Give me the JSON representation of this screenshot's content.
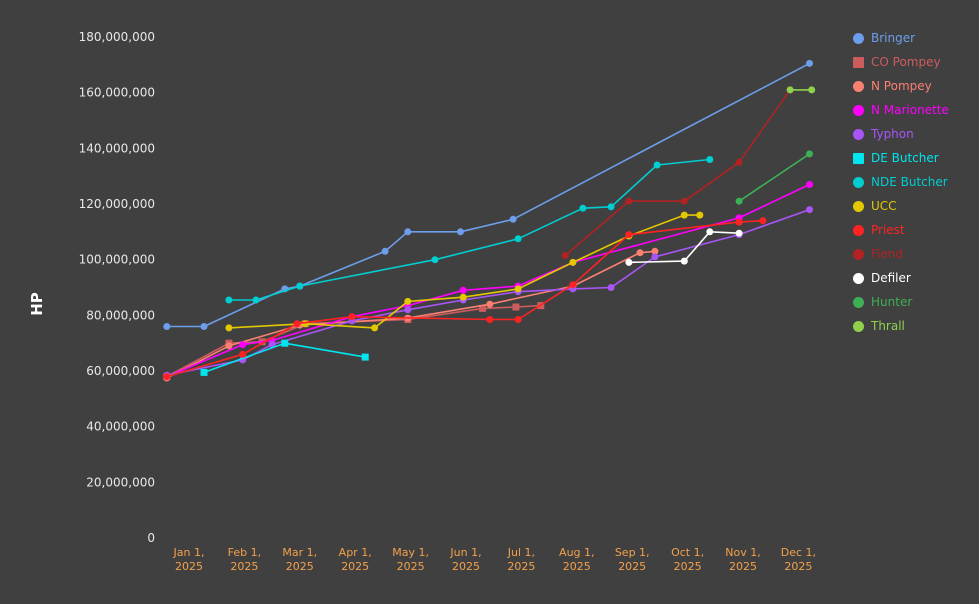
{
  "app": {
    "background": "#404040"
  },
  "chart_data": {
    "type": "line",
    "title": "",
    "ylabel": "HP",
    "xlabel": "",
    "ylim": [
      0,
      180000000
    ],
    "y_tick_step": 20000000,
    "x_unit": "month_index_from_jan_1_2025",
    "grid": false,
    "legend_position": "right",
    "axis": {
      "y_tick_color": "#e8e8e8",
      "y_label_color": "#ffffff",
      "x_tick_color": "#f5a04a"
    },
    "x_ticks": [
      {
        "label": "Jan 1,",
        "sub": "2025"
      },
      {
        "label": "Feb 1,",
        "sub": "2025"
      },
      {
        "label": "Mar 1,",
        "sub": "2025"
      },
      {
        "label": "Apr 1,",
        "sub": "2025"
      },
      {
        "label": "May 1,",
        "sub": "2025"
      },
      {
        "label": "Jun 1,",
        "sub": "2025"
      },
      {
        "label": "Jul 1,",
        "sub": "2025"
      },
      {
        "label": "Aug 1,",
        "sub": "2025"
      },
      {
        "label": "Sep 1,",
        "sub": "2025"
      },
      {
        "label": "Oct 1,",
        "sub": "2025"
      },
      {
        "label": "Nov 1,",
        "sub": "2025"
      },
      {
        "label": "Dec 1,",
        "sub": "2025"
      }
    ],
    "series": [
      {
        "name": "Bringer",
        "color": "#6d9eeb",
        "marker": "circle",
        "points": [
          [
            -0.4,
            76000000
          ],
          [
            0.27,
            76000000
          ],
          [
            1.73,
            89500000
          ],
          [
            2.0,
            90500000
          ],
          [
            3.54,
            103000000
          ],
          [
            3.95,
            110000000
          ],
          [
            4.9,
            110000000
          ],
          [
            5.85,
            114500000
          ],
          [
            11.2,
            170500000
          ]
        ]
      },
      {
        "name": "CO Pompey",
        "color": "#cd5c5c",
        "marker": "square",
        "points": [
          [
            -0.4,
            58000000
          ],
          [
            0.72,
            70000000
          ],
          [
            1.32,
            70500000
          ],
          [
            2.1,
            77000000
          ],
          [
            3.95,
            78500000
          ],
          [
            5.3,
            82500000
          ],
          [
            5.9,
            83000000
          ],
          [
            6.35,
            83500000
          ]
        ]
      },
      {
        "name": "N Pompey",
        "color": "#fa8072",
        "marker": "circle",
        "points": [
          [
            -0.4,
            57500000
          ],
          [
            0.72,
            69000000
          ],
          [
            2.0,
            76500000
          ],
          [
            3.95,
            79000000
          ],
          [
            5.43,
            84000000
          ],
          [
            6.93,
            90500000
          ],
          [
            8.14,
            102500000
          ],
          [
            8.41,
            103000000
          ]
        ]
      },
      {
        "name": "N Marionette",
        "color": "#ff00ff",
        "marker": "circle",
        "points": [
          [
            -0.4,
            58000000
          ],
          [
            0.97,
            69500000
          ],
          [
            1.5,
            71000000
          ],
          [
            2.94,
            79500000
          ],
          [
            3.95,
            83500000
          ],
          [
            4.95,
            89000000
          ],
          [
            5.94,
            90500000
          ],
          [
            6.93,
            99000000
          ],
          [
            9.93,
            115000000
          ],
          [
            11.2,
            127000000
          ]
        ]
      },
      {
        "name": "Typhon",
        "color": "#a855f7",
        "marker": "circle",
        "points": [
          [
            -0.4,
            58500000
          ],
          [
            0.97,
            64000000
          ],
          [
            1.5,
            69500000
          ],
          [
            2.94,
            78000000
          ],
          [
            3.95,
            82000000
          ],
          [
            4.95,
            85500000
          ],
          [
            5.94,
            88500000
          ],
          [
            6.93,
            89500000
          ],
          [
            7.62,
            90000000
          ],
          [
            8.41,
            101000000
          ],
          [
            9.93,
            109000000
          ],
          [
            11.2,
            118000000
          ]
        ]
      },
      {
        "name": "DE Butcher",
        "color": "#00e5ee",
        "marker": "square",
        "points": [
          [
            0.27,
            59500000
          ],
          [
            1.73,
            70000000
          ],
          [
            3.18,
            65000000
          ]
        ]
      },
      {
        "name": "NDE Butcher",
        "color": "#00ced1",
        "marker": "circle",
        "points": [
          [
            0.72,
            85500000
          ],
          [
            1.21,
            85500000
          ],
          [
            2.0,
            90500000
          ],
          [
            4.44,
            100000000
          ],
          [
            5.94,
            107500000
          ],
          [
            7.11,
            118500000
          ],
          [
            7.62,
            119000000
          ],
          [
            8.45,
            134000000
          ],
          [
            9.4,
            136000000
          ]
        ]
      },
      {
        "name": "UCC",
        "color": "#e3c800",
        "marker": "circle",
        "points": [
          [
            0.72,
            75500000
          ],
          [
            2.1,
            77000000
          ],
          [
            3.35,
            75500000
          ],
          [
            3.95,
            85000000
          ],
          [
            4.95,
            86500000
          ],
          [
            5.94,
            89500000
          ],
          [
            6.93,
            99000000
          ],
          [
            7.94,
            108500000
          ],
          [
            8.94,
            116000000
          ],
          [
            9.22,
            116000000
          ]
        ]
      },
      {
        "name": "Priest",
        "color": "#ff2222",
        "marker": "circle",
        "points": [
          [
            -0.4,
            58000000
          ],
          [
            0.97,
            66000000
          ],
          [
            1.95,
            77000000
          ],
          [
            2.94,
            79500000
          ],
          [
            5.43,
            78500000
          ],
          [
            5.94,
            78500000
          ],
          [
            6.93,
            91000000
          ],
          [
            7.94,
            109000000
          ],
          [
            9.93,
            113500000
          ],
          [
            10.36,
            114000000
          ]
        ]
      },
      {
        "name": "Fiend",
        "color": "#b22222",
        "marker": "circle",
        "points": [
          [
            6.79,
            101500000
          ],
          [
            7.94,
            121000000
          ],
          [
            8.94,
            121000000
          ],
          [
            9.93,
            135000000
          ],
          [
            10.85,
            161000000
          ]
        ]
      },
      {
        "name": "Defiler",
        "color": "#ffffff",
        "marker": "circle",
        "points": [
          [
            7.94,
            99000000
          ],
          [
            8.94,
            99500000
          ],
          [
            9.4,
            110000000
          ],
          [
            9.93,
            109500000
          ]
        ]
      },
      {
        "name": "Hunter",
        "color": "#3cb054",
        "marker": "circle",
        "points": [
          [
            9.93,
            121000000
          ],
          [
            11.2,
            138000000
          ]
        ]
      },
      {
        "name": "Thrall",
        "color": "#8fd14f",
        "marker": "circle",
        "points": [
          [
            10.85,
            161000000
          ],
          [
            11.24,
            161000000
          ]
        ]
      }
    ]
  }
}
